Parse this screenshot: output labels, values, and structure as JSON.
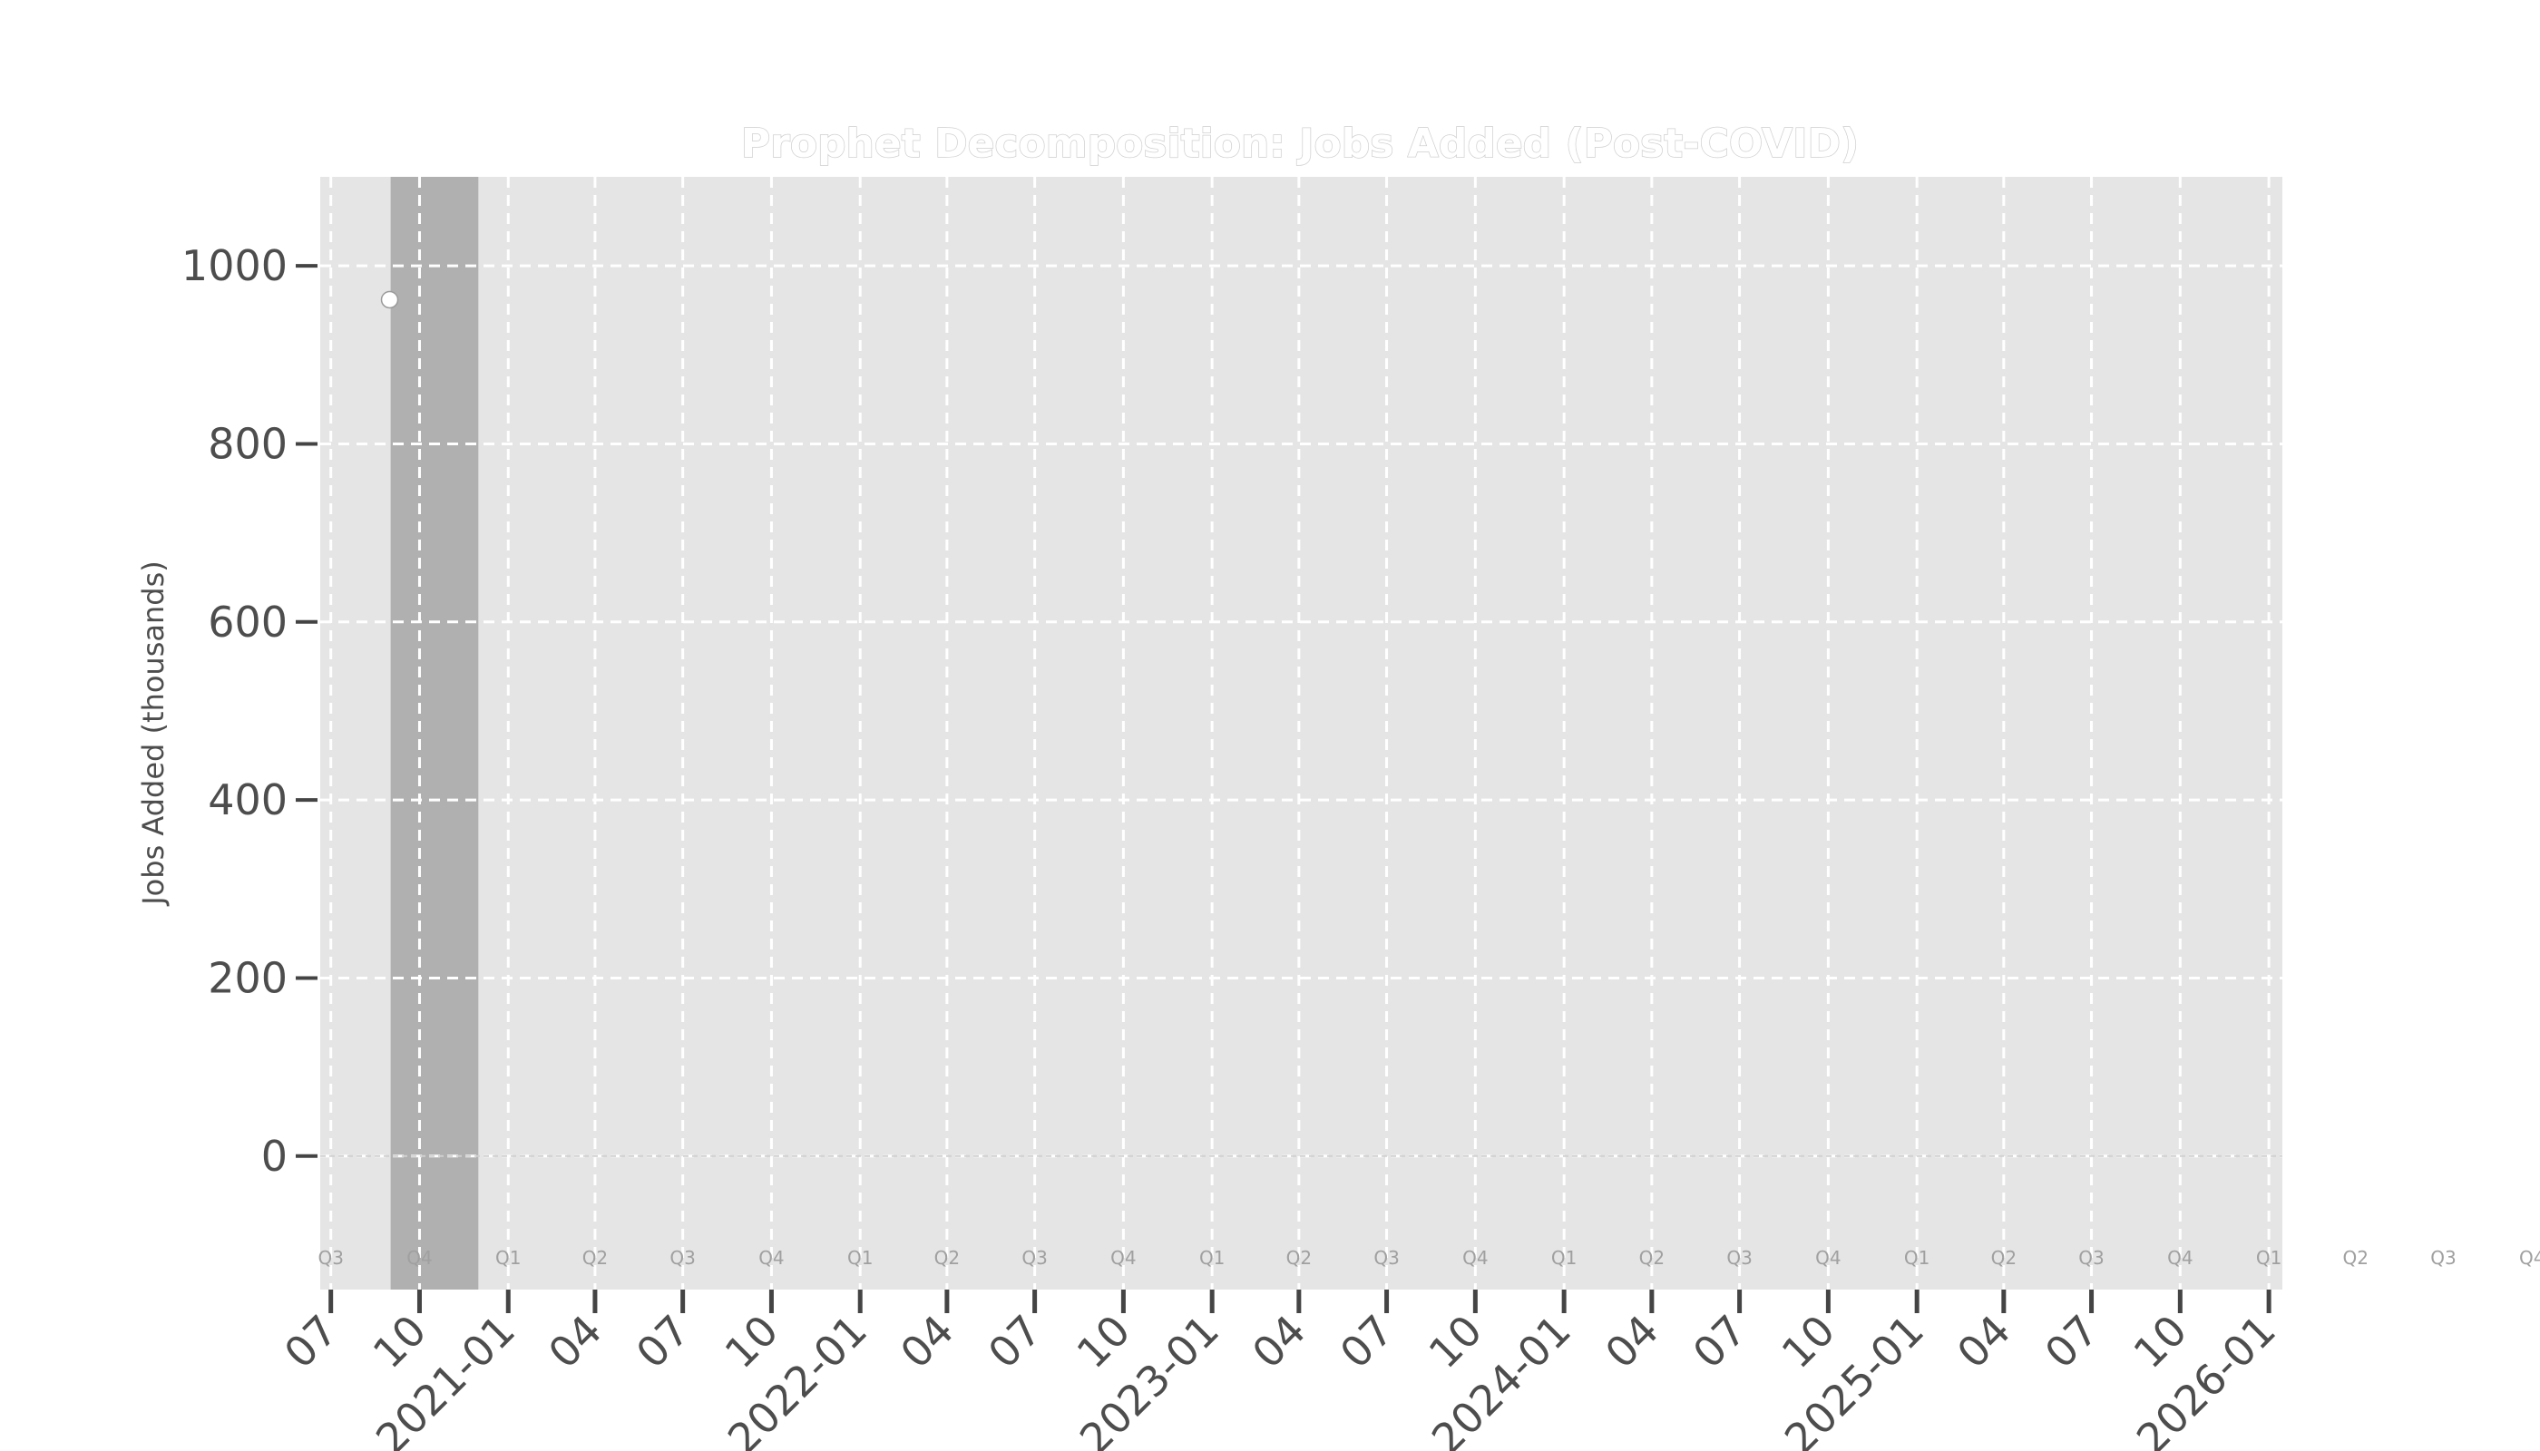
{
  "chart_data": {
    "type": "scatter",
    "title": "Prophet Decomposition: Jobs Added (Post-COVID)",
    "xlabel": "",
    "ylabel": "Jobs Added (thousands)",
    "xlim": [
      "2020-06-20",
      "2026-01-15"
    ],
    "ylim": [
      -150,
      1100
    ],
    "yticks": [
      0,
      200,
      400,
      600,
      800,
      1000
    ],
    "xticks": [
      {
        "date": "2020-07-01",
        "label": "07"
      },
      {
        "date": "2020-10-01",
        "label": "10"
      },
      {
        "date": "2021-01-01",
        "label": "2021-01"
      },
      {
        "date": "2021-04-01",
        "label": "04"
      },
      {
        "date": "2021-07-01",
        "label": "07"
      },
      {
        "date": "2021-10-01",
        "label": "10"
      },
      {
        "date": "2022-01-01",
        "label": "2022-01"
      },
      {
        "date": "2022-04-01",
        "label": "04"
      },
      {
        "date": "2022-07-01",
        "label": "07"
      },
      {
        "date": "2022-10-01",
        "label": "10"
      },
      {
        "date": "2023-01-01",
        "label": "2023-01"
      },
      {
        "date": "2023-04-01",
        "label": "04"
      },
      {
        "date": "2023-07-01",
        "label": "07"
      },
      {
        "date": "2023-10-01",
        "label": "10"
      },
      {
        "date": "2024-01-01",
        "label": "2024-01"
      },
      {
        "date": "2024-04-01",
        "label": "04"
      },
      {
        "date": "2024-07-01",
        "label": "07"
      },
      {
        "date": "2024-10-01",
        "label": "10"
      },
      {
        "date": "2025-01-01",
        "label": "2025-01"
      },
      {
        "date": "2025-04-01",
        "label": "04"
      },
      {
        "date": "2025-07-01",
        "label": "07"
      },
      {
        "date": "2025-10-01",
        "label": "10"
      },
      {
        "date": "2026-01-01",
        "label": "2026-01"
      }
    ],
    "quarter_labels": [
      {
        "date": "2020-07-01",
        "label": "Q3"
      },
      {
        "date": "2020-10-01",
        "label": "Q4"
      },
      {
        "date": "2021-01-01",
        "label": "Q1"
      },
      {
        "date": "2021-04-01",
        "label": "Q2"
      },
      {
        "date": "2021-07-01",
        "label": "Q3"
      },
      {
        "date": "2021-10-01",
        "label": "Q4"
      },
      {
        "date": "2022-01-01",
        "label": "Q1"
      },
      {
        "date": "2022-04-01",
        "label": "Q2"
      },
      {
        "date": "2022-07-01",
        "label": "Q3"
      },
      {
        "date": "2022-10-01",
        "label": "Q4"
      },
      {
        "date": "2023-01-01",
        "label": "Q1"
      },
      {
        "date": "2023-04-01",
        "label": "Q2"
      },
      {
        "date": "2023-07-01",
        "label": "Q3"
      },
      {
        "date": "2023-10-01",
        "label": "Q4"
      },
      {
        "date": "2024-01-01",
        "label": "Q1"
      },
      {
        "date": "2024-04-01",
        "label": "Q2"
      },
      {
        "date": "2024-07-01",
        "label": "Q3"
      },
      {
        "date": "2024-10-01",
        "label": "Q4"
      },
      {
        "date": "2025-01-01",
        "label": "Q1"
      },
      {
        "date": "2025-04-01",
        "label": "Q2"
      },
      {
        "date": "2025-07-01",
        "label": "Q3"
      },
      {
        "date": "2025-10-01",
        "label": "Q4"
      },
      {
        "date": "2026-01-01",
        "label": "Q1"
      },
      {
        "date": "2026-04-01",
        "label": "Q2"
      },
      {
        "date": "2026-07-01",
        "label": "Q3"
      },
      {
        "date": "2026-10-01",
        "label": "Q4"
      }
    ],
    "highlight_span": {
      "start": "2020-09-01",
      "end": "2020-12-01"
    },
    "points": [
      {
        "x": "2020-08-31",
        "y": 962
      }
    ],
    "reference_line": 0,
    "grid": true,
    "colors": {
      "plot_background": "#e5e5e5",
      "highlight": "#b0b0b0",
      "grid": "#ffffff",
      "tick_text": "#4d4d4d",
      "quarter_text": "#a0a0a0",
      "point_fill": "#ffffff",
      "reference_line": "#d0d0d0"
    }
  }
}
